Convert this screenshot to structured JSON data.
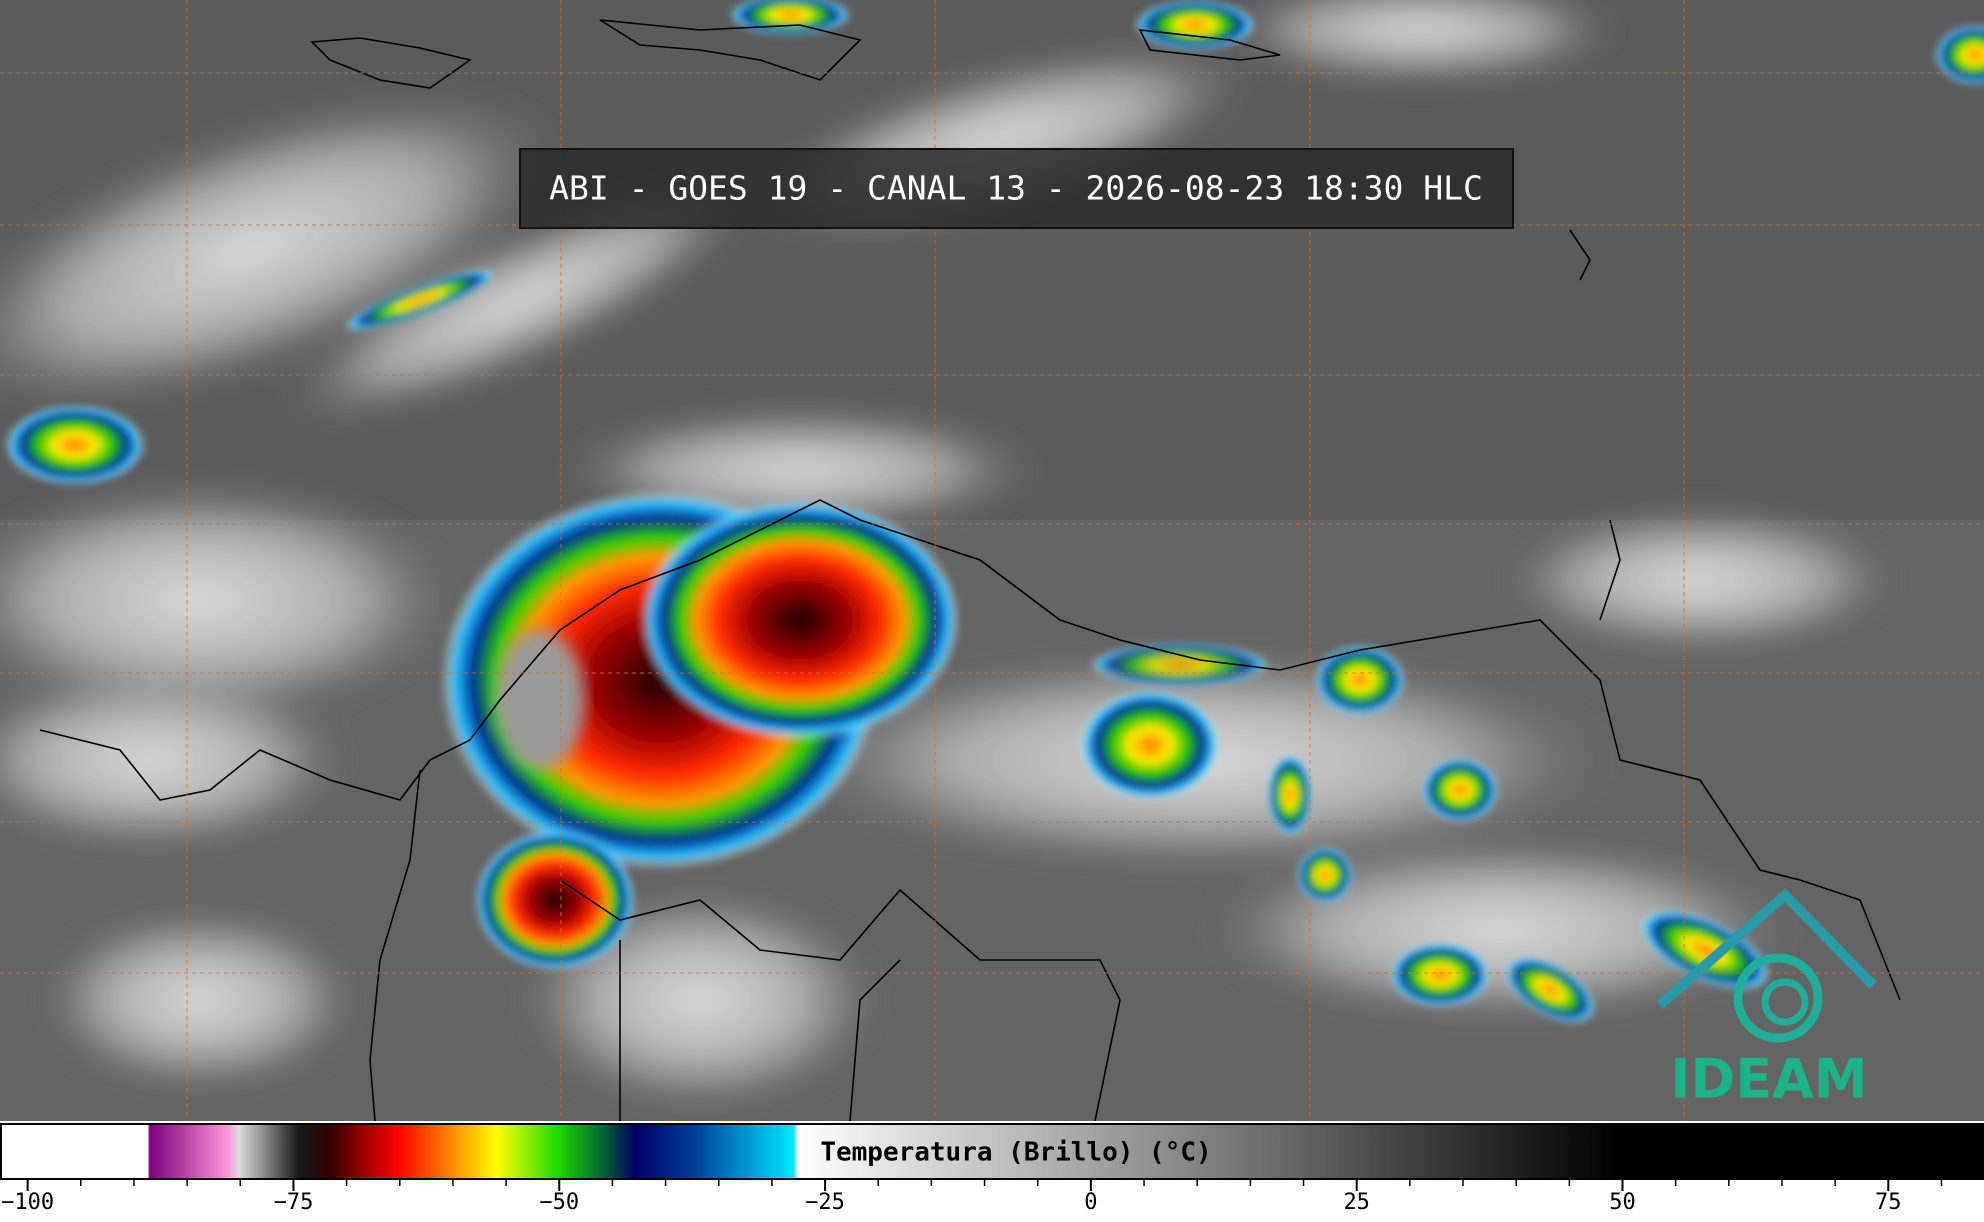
{
  "title": "ABI - GOES 19 - CANAL 13 - 2026-08-23 18:30 HLC",
  "logo": "IDEAM",
  "colorbar": {
    "label": "Temperatura (Brillo) (°C)",
    "lim": [
      -102.6,
      84
    ],
    "ticks": [
      {
        "value": -100,
        "label": "−100"
      },
      {
        "value": -75,
        "label": "−75"
      },
      {
        "value": -50,
        "label": "−50"
      },
      {
        "value": -25,
        "label": "−25"
      },
      0,
      25,
      50,
      75
    ]
  }
}
